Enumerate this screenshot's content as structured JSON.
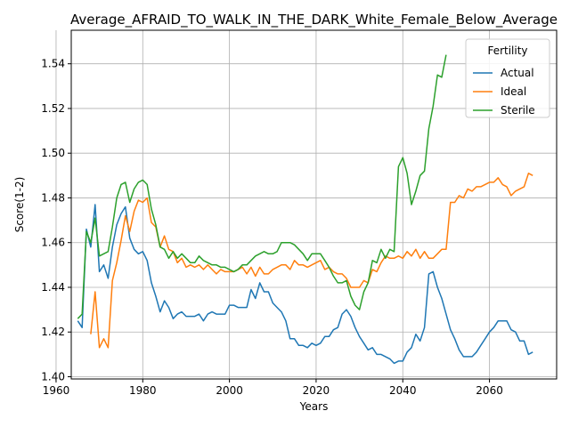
{
  "chart_data": {
    "type": "line",
    "title": "Average_AFRAID_TO_WALK_IN_THE_DARK_White_Female_Below_Average",
    "xlabel": "Years",
    "ylabel": "Score(1-2)",
    "xlim": [
      1963.5,
      2075.5
    ],
    "ylim": [
      1.399,
      1.555
    ],
    "xticks": [
      1960,
      1980,
      2000,
      2020,
      2040,
      2060
    ],
    "yticks": [
      1.4,
      1.42,
      1.44,
      1.46,
      1.48,
      1.5,
      1.52,
      1.54
    ],
    "ytick_labels": [
      "1.40",
      "1.42",
      "1.44",
      "1.46",
      "1.48",
      "1.50",
      "1.52",
      "1.54"
    ],
    "grid": true,
    "legend": {
      "title": "Fertility",
      "position": "top-right"
    },
    "series": [
      {
        "name": "Actual",
        "color": "#1f77b4",
        "x": [
          1965,
          1966,
          1967,
          1968,
          1969,
          1970,
          1971,
          1972,
          1973,
          1974,
          1975,
          1976,
          1977,
          1978,
          1979,
          1980,
          1981,
          1982,
          1983,
          1984,
          1985,
          1986,
          1987,
          1988,
          1989,
          1990,
          1991,
          1992,
          1993,
          1994,
          1995,
          1996,
          1997,
          1998,
          1999,
          2000,
          2001,
          2002,
          2003,
          2004,
          2005,
          2006,
          2007,
          2008,
          2009,
          2010,
          2011,
          2012,
          2013,
          2014,
          2015,
          2016,
          2017,
          2018,
          2019,
          2020,
          2021,
          2022,
          2023,
          2024,
          2025,
          2026,
          2027,
          2028,
          2029,
          2030,
          2031,
          2032,
          2033,
          2034,
          2035,
          2036,
          2037,
          2038,
          2039,
          2040,
          2041,
          2042,
          2043,
          2044,
          2045,
          2046,
          2047,
          2048,
          2049,
          2050,
          2051,
          2052,
          2053,
          2054,
          2055,
          2056,
          2057,
          2058,
          2059,
          2060,
          2061,
          2062,
          2063,
          2064,
          2065,
          2066,
          2067,
          2068,
          2069,
          2070
        ],
        "values": [
          1.425,
          1.422,
          1.466,
          1.458,
          1.477,
          1.447,
          1.45,
          1.444,
          1.458,
          1.468,
          1.473,
          1.476,
          1.462,
          1.457,
          1.455,
          1.456,
          1.452,
          1.442,
          1.436,
          1.429,
          1.434,
          1.431,
          1.426,
          1.428,
          1.429,
          1.427,
          1.427,
          1.427,
          1.428,
          1.425,
          1.428,
          1.429,
          1.428,
          1.428,
          1.428,
          1.432,
          1.432,
          1.431,
          1.431,
          1.431,
          1.439,
          1.435,
          1.442,
          1.438,
          1.438,
          1.433,
          1.431,
          1.429,
          1.425,
          1.417,
          1.417,
          1.414,
          1.414,
          1.413,
          1.415,
          1.414,
          1.415,
          1.418,
          1.418,
          1.421,
          1.422,
          1.428,
          1.43,
          1.427,
          1.422,
          1.418,
          1.415,
          1.412,
          1.413,
          1.41,
          1.41,
          1.409,
          1.408,
          1.406,
          1.407,
          1.407,
          1.411,
          1.413,
          1.419,
          1.416,
          1.422,
          1.446,
          1.447,
          1.44,
          1.435,
          1.428,
          1.421,
          1.417,
          1.412,
          1.409,
          1.409,
          1.409,
          1.411,
          1.414,
          1.417,
          1.42,
          1.422,
          1.425,
          1.425,
          1.425,
          1.421,
          1.42,
          1.416,
          1.416,
          1.41,
          1.411
        ]
      },
      {
        "name": "Ideal",
        "color": "#ff7f0e",
        "x": [
          1968,
          1969,
          1970,
          1971,
          1972,
          1973,
          1974,
          1975,
          1976,
          1977,
          1978,
          1979,
          1980,
          1981,
          1982,
          1983,
          1984,
          1985,
          1986,
          1987,
          1988,
          1989,
          1990,
          1991,
          1992,
          1993,
          1994,
          1995,
          1996,
          1997,
          1998,
          1999,
          2000,
          2001,
          2002,
          2003,
          2004,
          2005,
          2006,
          2007,
          2008,
          2009,
          2010,
          2011,
          2012,
          2013,
          2014,
          2015,
          2016,
          2017,
          2018,
          2019,
          2020,
          2021,
          2022,
          2023,
          2024,
          2025,
          2026,
          2027,
          2028,
          2029,
          2030,
          2031,
          2032,
          2033,
          2034,
          2035,
          2036,
          2037,
          2038,
          2039,
          2040,
          2041,
          2042,
          2043,
          2044,
          2045,
          2046,
          2047,
          2048,
          2049,
          2050,
          2051,
          2052,
          2053,
          2054,
          2055,
          2056,
          2057,
          2058,
          2059,
          2060,
          2061,
          2062,
          2063,
          2064,
          2065,
          2066,
          2067,
          2068,
          2069,
          2070
        ],
        "values": [
          1.419,
          1.438,
          1.413,
          1.417,
          1.413,
          1.443,
          1.451,
          1.461,
          1.472,
          1.465,
          1.474,
          1.479,
          1.478,
          1.48,
          1.469,
          1.467,
          1.458,
          1.463,
          1.457,
          1.456,
          1.451,
          1.453,
          1.449,
          1.45,
          1.449,
          1.45,
          1.448,
          1.45,
          1.448,
          1.446,
          1.448,
          1.447,
          1.447,
          1.447,
          1.448,
          1.449,
          1.446,
          1.449,
          1.445,
          1.449,
          1.446,
          1.446,
          1.448,
          1.449,
          1.45,
          1.45,
          1.448,
          1.452,
          1.45,
          1.45,
          1.449,
          1.45,
          1.451,
          1.452,
          1.448,
          1.449,
          1.447,
          1.446,
          1.446,
          1.444,
          1.44,
          1.44,
          1.44,
          1.443,
          1.442,
          1.448,
          1.447,
          1.451,
          1.454,
          1.453,
          1.453,
          1.454,
          1.453,
          1.456,
          1.454,
          1.457,
          1.453,
          1.456,
          1.453,
          1.453,
          1.455,
          1.457,
          1.457,
          1.478,
          1.478,
          1.481,
          1.48,
          1.484,
          1.483,
          1.485,
          1.485,
          1.486,
          1.487,
          1.487,
          1.489,
          1.486,
          1.485,
          1.481,
          1.483,
          1.484,
          1.485,
          1.491,
          1.49
        ]
      },
      {
        "name": "Sterile",
        "color": "#2ca02c",
        "x": [
          1965,
          1966,
          1967,
          1968,
          1969,
          1970,
          1971,
          1972,
          1973,
          1974,
          1975,
          1976,
          1977,
          1978,
          1979,
          1980,
          1981,
          1982,
          1983,
          1984,
          1985,
          1986,
          1987,
          1988,
          1989,
          1990,
          1991,
          1992,
          1993,
          1994,
          1995,
          1996,
          1997,
          1998,
          1999,
          2000,
          2001,
          2002,
          2003,
          2004,
          2005,
          2006,
          2007,
          2008,
          2009,
          2010,
          2011,
          2012,
          2013,
          2014,
          2015,
          2016,
          2017,
          2018,
          2019,
          2020,
          2021,
          2022,
          2023,
          2024,
          2025,
          2026,
          2027,
          2028,
          2029,
          2030,
          2031,
          2032,
          2033,
          2034,
          2035,
          2036,
          2037,
          2038,
          2039,
          2040,
          2041,
          2042,
          2043,
          2044,
          2045,
          2046,
          2047,
          2048,
          2049,
          2050
        ],
        "values": [
          1.426,
          1.428,
          1.465,
          1.46,
          1.471,
          1.454,
          1.455,
          1.456,
          1.467,
          1.48,
          1.486,
          1.487,
          1.478,
          1.484,
          1.487,
          1.488,
          1.486,
          1.475,
          1.468,
          1.458,
          1.457,
          1.453,
          1.456,
          1.453,
          1.455,
          1.453,
          1.451,
          1.451,
          1.454,
          1.452,
          1.451,
          1.45,
          1.45,
          1.449,
          1.449,
          1.448,
          1.447,
          1.448,
          1.45,
          1.45,
          1.452,
          1.454,
          1.455,
          1.456,
          1.455,
          1.455,
          1.456,
          1.46,
          1.46,
          1.46,
          1.459,
          1.457,
          1.455,
          1.452,
          1.455,
          1.455,
          1.455,
          1.452,
          1.449,
          1.445,
          1.442,
          1.442,
          1.443,
          1.436,
          1.432,
          1.43,
          1.438,
          1.442,
          1.452,
          1.451,
          1.457,
          1.453,
          1.457,
          1.456,
          1.494,
          1.498,
          1.491,
          1.477,
          1.483,
          1.49,
          1.492,
          1.511,
          1.521,
          1.535,
          1.534,
          1.544
        ]
      }
    ]
  }
}
